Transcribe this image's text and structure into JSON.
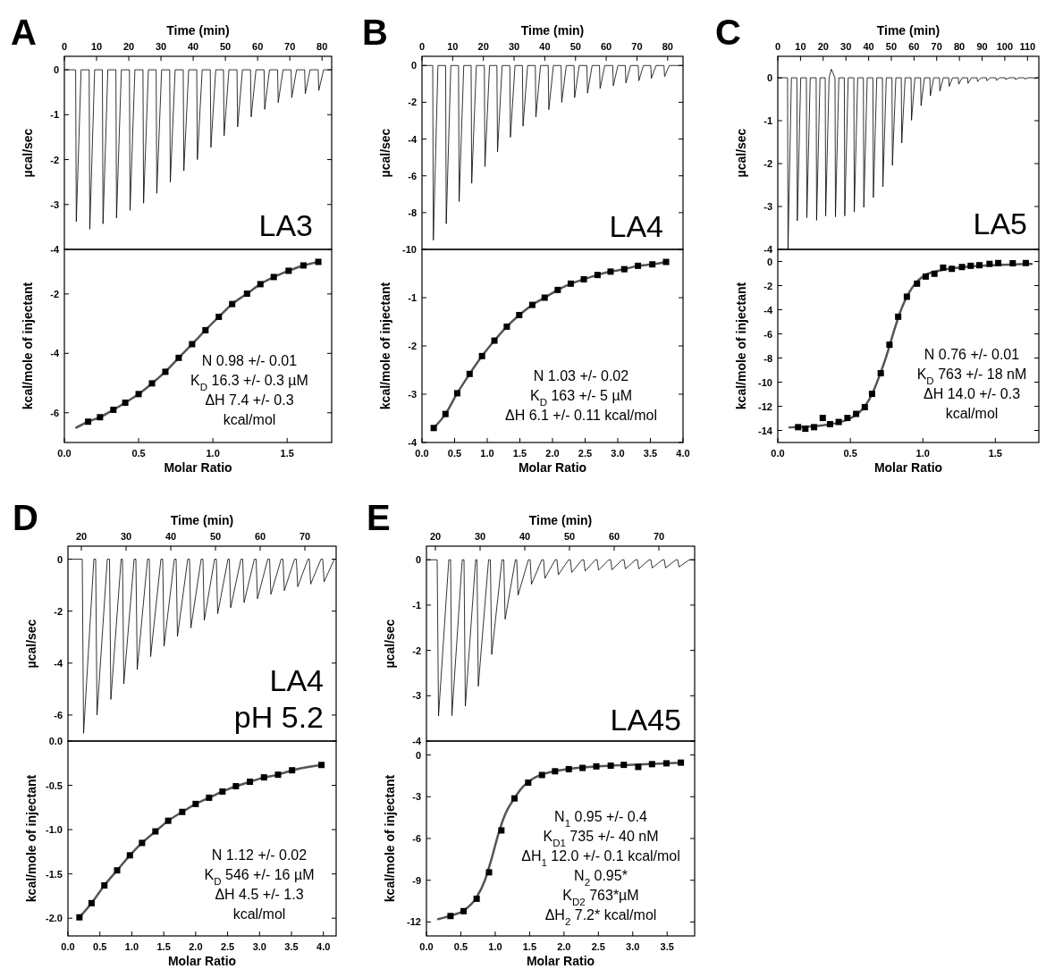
{
  "chart_data": [
    {
      "type": "line",
      "title": "A",
      "xlabel": "Time (min)",
      "ylabel": "µcal/sec",
      "xlim": [
        0,
        83
      ],
      "xticks": [
        0,
        10,
        20,
        30,
        40,
        50,
        60,
        70,
        80
      ],
      "ylim": [
        -4,
        0.3
      ],
      "yticks": [
        0,
        -1,
        -2,
        -3,
        -4
      ],
      "annotations": [
        "LA3"
      ],
      "series": [
        {
          "color": "#000000",
          "x": [
            0,
            3.5,
            3.7,
            5.2,
            7.7,
            7.9,
            9.4,
            11.8,
            12.0,
            13.5,
            16.0,
            16.2,
            17.7,
            20.2,
            20.4,
            21.9,
            24.4,
            24.6,
            26.1,
            28.5,
            28.7,
            30.2,
            32.7,
            32.9,
            34.4,
            36.9,
            37.1,
            38.6,
            41.1,
            41.3,
            42.8,
            45.3,
            45.5,
            47.0,
            49.4,
            49.6,
            51.1,
            53.6,
            53.8,
            55.3,
            57.8,
            58.0,
            59.5,
            62.0,
            62.2,
            63.7,
            66.2,
            66.4,
            67.9,
            70.4,
            70.6,
            72.1,
            74.6,
            74.8,
            76.3,
            78.8,
            79.0,
            80.5,
            83
          ],
          "values": [
            0,
            0,
            -3.38,
            0,
            0,
            -3.55,
            0,
            0,
            -3.43,
            0,
            0,
            -3.3,
            0,
            0,
            -3.13,
            0,
            0,
            -2.97,
            0,
            0,
            -2.75,
            0,
            0,
            -2.5,
            0,
            0,
            -2.25,
            0,
            0,
            -2.0,
            0,
            0,
            -1.73,
            0,
            0,
            -1.47,
            0,
            0,
            -1.27,
            0,
            0,
            -1.05,
            0,
            0,
            -0.88,
            0,
            0,
            -0.73,
            0,
            0,
            -0.62,
            0,
            0,
            -0.53,
            0,
            0,
            -0.46,
            0,
            0
          ]
        }
      ]
    },
    {
      "type": "scatter",
      "xlabel": "Molar Ratio",
      "ylabel": "kcal/mole of injectant",
      "xlim": [
        0,
        1.8
      ],
      "xticks": [
        {
          "value": 0,
          "label": "0.0"
        },
        {
          "value": 0.5,
          "label": "0.5"
        },
        {
          "value": 1,
          "label": "1.0"
        },
        {
          "value": 1.5,
          "label": "1.5"
        }
      ],
      "ylim": [
        -7,
        -0.5
      ],
      "yticks": [
        -2,
        -4,
        -6
      ],
      "marker": "square",
      "annotations": [
        "N 0.98 +/- 0.01",
        "K$_{D}$ 16.3 +/- 0.3 µM",
        "ΔH 7.4 +/- 0.3",
        "kcal/mol"
      ],
      "series": [
        {
          "type": "line",
          "marker": "none",
          "color": "#555555",
          "x": [
            0.08,
            0.16,
            0.24,
            0.33,
            0.41,
            0.5,
            0.59,
            0.68,
            0.77,
            0.86,
            0.95,
            1.04,
            1.13,
            1.23,
            1.32,
            1.41,
            1.51,
            1.61,
            1.71
          ],
          "values": [
            -6.5,
            -6.3,
            -6.15,
            -5.9,
            -5.66,
            -5.37,
            -5.01,
            -4.62,
            -4.15,
            -3.69,
            -3.22,
            -2.77,
            -2.34,
            -1.99,
            -1.67,
            -1.43,
            -1.22,
            -1.04,
            -0.92
          ]
        },
        {
          "type": "scatter",
          "color": "#000000",
          "x": [
            0.16,
            0.24,
            0.33,
            0.41,
            0.5,
            0.59,
            0.68,
            0.77,
            0.86,
            0.95,
            1.04,
            1.13,
            1.23,
            1.32,
            1.41,
            1.51,
            1.61,
            1.71
          ],
          "values": [
            -6.3,
            -6.15,
            -5.9,
            -5.66,
            -5.37,
            -5.01,
            -4.62,
            -4.15,
            -3.69,
            -3.22,
            -2.77,
            -2.34,
            -1.99,
            -1.67,
            -1.43,
            -1.22,
            -1.04,
            -0.92
          ]
        }
      ]
    },
    {
      "type": "line",
      "title": "B",
      "xlabel": "Time (min)",
      "ylabel": "µcal/sec",
      "xlim": [
        0,
        85
      ],
      "xticks": [
        0,
        10,
        20,
        30,
        40,
        50,
        60,
        70,
        80
      ],
      "ylim": [
        -10,
        0.5
      ],
      "yticks": [
        0,
        -2,
        -4,
        -6,
        -8,
        -10
      ],
      "annotations": [
        "LA4"
      ],
      "series": [
        {
          "color": "#000000",
          "x": [
            0,
            3.5,
            3.7,
            5.2,
            7.7,
            7.9,
            9.4,
            11.9,
            12.1,
            13.6,
            16.0,
            16.2,
            17.7,
            20.3,
            20.5,
            22.0,
            24.4,
            24.6,
            26.1,
            28.6,
            28.8,
            30.3,
            32.7,
            32.9,
            34.4,
            36.9,
            37.1,
            38.6,
            41.1,
            41.3,
            42.8,
            45.3,
            45.5,
            47.0,
            49.5,
            49.7,
            51.2,
            53.7,
            53.9,
            55.4,
            57.8,
            58.0,
            59.5,
            62.1,
            62.3,
            63.8,
            66.2,
            66.4,
            67.9,
            70.4,
            70.6,
            72.1,
            74.5,
            74.7,
            76.2,
            78.8,
            79.0,
            80.5,
            85
          ],
          "values": [
            0,
            0,
            -9.5,
            0,
            0,
            -8.6,
            0,
            0,
            -7.4,
            0,
            0,
            -6.4,
            0,
            0,
            -5.5,
            0,
            0,
            -4.7,
            0,
            0,
            -3.9,
            0,
            0,
            -3.3,
            0,
            0,
            -2.8,
            0,
            0,
            -2.4,
            0,
            0,
            -2.0,
            0,
            0,
            -1.75,
            0,
            0,
            -1.5,
            0,
            0,
            -1.25,
            0,
            0,
            -1.1,
            0,
            0,
            -0.95,
            0,
            0,
            -0.83,
            0,
            0,
            -0.7,
            0,
            0,
            -0.6,
            0,
            0
          ]
        }
      ]
    },
    {
      "type": "scatter",
      "xlabel": "Molar Ratio",
      "ylabel": "kcal/mole of injectant",
      "xlim": [
        0,
        4
      ],
      "xticks": [
        {
          "value": 0,
          "label": "0.0"
        },
        {
          "value": 0.5,
          "label": "0.5"
        },
        {
          "value": 1,
          "label": "1.0"
        },
        {
          "value": 1.5,
          "label": "1.5"
        },
        {
          "value": 2,
          "label": "2.0"
        },
        {
          "value": 2.5,
          "label": "2.5"
        },
        {
          "value": 3,
          "label": "3.0"
        },
        {
          "value": 3.5,
          "label": "3.5"
        },
        {
          "value": 4,
          "label": "4.0"
        }
      ],
      "ylim": [
        -4,
        0
      ],
      "yticks": [
        -1,
        -2,
        -3,
        -4
      ],
      "marker": "square",
      "annotations": [
        "N 1.03 +/- 0.02",
        "K$_{D}$ 163 +/- 5 µM",
        "ΔH 6.1 +/- 0.11 kcal/mol"
      ],
      "series": [
        {
          "type": "line",
          "marker": "none",
          "color": "#555555",
          "x": [
            0.18,
            0.36,
            0.54,
            0.73,
            0.92,
            1.11,
            1.3,
            1.49,
            1.69,
            1.88,
            2.08,
            2.28,
            2.48,
            2.69,
            2.89,
            3.1,
            3.31,
            3.53,
            3.74
          ],
          "values": [
            -3.7,
            -3.41,
            -2.98,
            -2.58,
            -2.21,
            -1.89,
            -1.6,
            -1.36,
            -1.15,
            -1.0,
            -0.84,
            -0.71,
            -0.62,
            -0.53,
            -0.46,
            -0.41,
            -0.34,
            -0.31,
            -0.26
          ]
        },
        {
          "type": "scatter",
          "color": "#000000",
          "x": [
            0.18,
            0.36,
            0.54,
            0.73,
            0.92,
            1.11,
            1.3,
            1.49,
            1.69,
            1.88,
            2.08,
            2.28,
            2.48,
            2.69,
            2.89,
            3.1,
            3.31,
            3.53,
            3.74
          ],
          "values": [
            -3.7,
            -3.41,
            -2.98,
            -2.58,
            -2.21,
            -1.89,
            -1.6,
            -1.36,
            -1.15,
            -1.0,
            -0.84,
            -0.71,
            -0.62,
            -0.53,
            -0.46,
            -0.41,
            -0.34,
            -0.31,
            -0.26
          ]
        }
      ]
    },
    {
      "type": "line",
      "title": "C",
      "xlabel": "Time (min)",
      "ylabel": "µcal/sec",
      "xlim": [
        0,
        115
      ],
      "xticks": [
        0,
        10,
        20,
        30,
        40,
        50,
        60,
        70,
        80,
        90,
        100,
        110
      ],
      "ylim": [
        -4,
        0.5
      ],
      "yticks": [
        0,
        -1,
        -2,
        -3,
        -4
      ],
      "annotations": [
        "LA5"
      ],
      "series": [
        {
          "color": "#000000",
          "x": [
            0,
            4.3,
            4.5,
            6.0,
            8.4,
            8.6,
            10.1,
            12.6,
            12.8,
            14.3,
            16.9,
            17.1,
            18.6,
            20.9,
            21.1,
            22.6,
            23.6,
            25.2,
            25.4,
            26.9,
            29.3,
            29.5,
            31.0,
            33.5,
            33.7,
            35.2,
            37.7,
            37.9,
            39.4,
            41.9,
            42.1,
            43.6,
            46.1,
            46.3,
            47.8,
            50.3,
            50.5,
            52.0,
            54.4,
            54.6,
            56.1,
            58.7,
            58.9,
            60.4,
            62.9,
            63.1,
            64.6,
            67.0,
            67.2,
            68.7,
            71.2,
            71.4,
            72.9,
            75.3,
            75.5,
            77.0,
            79.5,
            79.7,
            81.2,
            83.6,
            83.8,
            85.3,
            87.8,
            88.0,
            89.5,
            91.9,
            92.1,
            93.6,
            96.1,
            96.3,
            97.8,
            100.2,
            100.4,
            101.9,
            104.5,
            104.7,
            106.2,
            108.6,
            108.8,
            110.3,
            112.8,
            113.0,
            114.5,
            115
          ],
          "values": [
            0,
            0,
            -4,
            0,
            0,
            -3.33,
            0,
            0,
            -3.26,
            0,
            0,
            -3.32,
            0,
            0,
            -3.22,
            0,
            0.2,
            0,
            -3.24,
            0,
            0,
            -3.22,
            0,
            0,
            -3.13,
            0,
            0,
            -3.02,
            0,
            0,
            -2.79,
            0,
            0,
            -2.54,
            0,
            0,
            -2.04,
            0,
            0,
            -1.52,
            0,
            0,
            -0.99,
            0,
            0,
            -0.65,
            0,
            0,
            -0.42,
            0,
            0,
            -0.31,
            0,
            0,
            -0.2,
            0,
            0,
            -0.15,
            0,
            0,
            -0.13,
            0,
            0,
            -0.09,
            0,
            0,
            -0.07,
            0,
            0,
            -0.06,
            0,
            0,
            -0.04,
            0,
            0,
            -0.04,
            0,
            0,
            -0.03,
            0,
            0,
            -0.02,
            0,
            0
          ]
        }
      ]
    },
    {
      "type": "scatter",
      "xlabel": "Molar Ratio",
      "ylabel": "kcal/mole of injectant",
      "xlim": [
        0,
        1.8
      ],
      "xticks": [
        {
          "value": 0,
          "label": "0.0"
        },
        {
          "value": 0.5,
          "label": "0.5"
        },
        {
          "value": 1,
          "label": "1.0"
        },
        {
          "value": 1.5,
          "label": "1.5"
        }
      ],
      "ylim": [
        -15,
        1
      ],
      "yticks": [
        0,
        -2,
        -4,
        -6,
        -8,
        -10,
        -12,
        -14
      ],
      "marker": "square",
      "annotations": [
        "N 0.76 +/- 0.01",
        "K$_{D}$ 763 +/- 18 nM",
        "ΔH 14.0 +/- 0.3",
        "kcal/mol"
      ],
      "series": [
        {
          "type": "line",
          "marker": "none",
          "color": "#555555",
          "x": [
            0.08,
            0.3,
            0.5,
            0.6,
            0.65,
            0.7,
            0.75,
            0.8,
            0.85,
            0.9,
            0.95,
            1.0,
            1.1,
            1.3,
            1.5,
            1.75
          ],
          "values": [
            -13.75,
            -13.6,
            -13.0,
            -12.0,
            -11.0,
            -9.5,
            -7.8,
            -5.8,
            -4.0,
            -2.7,
            -1.8,
            -1.25,
            -0.8,
            -0.45,
            -0.3,
            -0.2
          ]
        },
        {
          "type": "scatter",
          "color": "#000000",
          "x": [
            0.14,
            0.19,
            0.25,
            0.31,
            0.36,
            0.42,
            0.48,
            0.54,
            0.6,
            0.65,
            0.71,
            0.77,
            0.83,
            0.89,
            0.96,
            1.02,
            1.08,
            1.14,
            1.2,
            1.27,
            1.33,
            1.39,
            1.46,
            1.52,
            1.62,
            1.71
          ],
          "values": [
            -13.73,
            -13.86,
            -13.73,
            -12.97,
            -13.48,
            -13.3,
            -12.97,
            -12.63,
            -12.07,
            -10.97,
            -9.26,
            -6.9,
            -4.58,
            -2.92,
            -1.84,
            -1.25,
            -1.02,
            -0.51,
            -0.61,
            -0.46,
            -0.36,
            -0.31,
            -0.2,
            -0.13,
            -0.15,
            -0.13
          ]
        }
      ]
    },
    {
      "type": "line",
      "title": "D",
      "xlabel": "Time (min)",
      "ylabel": "µcal/sec",
      "xlim": [
        17,
        77
      ],
      "xticks": [
        20,
        30,
        40,
        50,
        60,
        70
      ],
      "ylim": [
        -7,
        0.5
      ],
      "yticks": [
        0,
        -2,
        -4,
        -6
      ],
      "annotations": [
        "LA4",
        "pH 5.2"
      ],
      "series": [
        {
          "color": "#000000",
          "x": [
            17,
            20.2,
            20.5,
            22.8,
            23.2,
            23.5,
            25.8,
            26.3,
            26.6,
            28.9,
            29.2,
            29.5,
            31.8,
            32.2,
            32.5,
            34.8,
            35.2,
            35.5,
            37.8,
            38.2,
            38.5,
            40.8,
            41.2,
            41.5,
            43.8,
            44.2,
            44.5,
            46.8,
            47.2,
            47.5,
            49.8,
            50.2,
            50.5,
            52.8,
            53.1,
            53.4,
            55.7,
            56.1,
            56.4,
            58.7,
            59.1,
            59.4,
            61.7,
            62.1,
            62.4,
            64.7,
            65.1,
            65.4,
            67.7,
            68.1,
            68.4,
            70.7,
            71.0,
            71.3,
            73.6,
            74.0,
            74.3,
            76.6,
            77
          ],
          "values": [
            0,
            0,
            -6.7,
            0,
            0,
            -6.0,
            0,
            0,
            -5.4,
            0,
            0,
            -4.8,
            0,
            0,
            -4.25,
            0,
            0,
            -3.75,
            0,
            0,
            -3.35,
            0,
            0,
            -2.97,
            0,
            0,
            -2.65,
            0,
            0,
            -2.35,
            0,
            0,
            -2.1,
            0,
            0,
            -1.87,
            0,
            0,
            -1.67,
            0,
            0,
            -1.52,
            0,
            0,
            -1.35,
            0,
            0,
            -1.21,
            0,
            0,
            -1.06,
            0,
            0,
            -0.96,
            0,
            0,
            -0.87,
            0,
            0
          ]
        }
      ]
    },
    {
      "type": "scatter",
      "xlabel": "Molar Ratio",
      "ylabel": "kcal/mole of injectant",
      "xlim": [
        0,
        4.2
      ],
      "xticks": [
        {
          "value": 0,
          "label": "0.0"
        },
        {
          "value": 0.5,
          "label": "0.5"
        },
        {
          "value": 1,
          "label": "1.0"
        },
        {
          "value": 1.5,
          "label": "1.5"
        },
        {
          "value": 2,
          "label": "2.0"
        },
        {
          "value": 2.5,
          "label": "2.5"
        },
        {
          "value": 3,
          "label": "3.0"
        },
        {
          "value": 3.5,
          "label": "3.5"
        },
        {
          "value": 4,
          "label": "4.0"
        }
      ],
      "ylim": [
        -2.2,
        0
      ],
      "yticks": [
        {
          "value": 0,
          "label": "0.0"
        },
        {
          "value": -0.5,
          "label": "-0.5"
        },
        {
          "value": -1,
          "label": "-1.0"
        },
        {
          "value": -1.5,
          "label": "-1.5"
        },
        {
          "value": -2,
          "label": "-2.0"
        }
      ],
      "marker": "square",
      "annotations": [
        "N  1.12 +/- 0.02",
        "K$_{D}$ 546 +/- 16 µM",
        "ΔH 4.5 +/- 1.3",
        "kcal/mol"
      ],
      "series": [
        {
          "type": "line",
          "marker": "none",
          "color": "#555555",
          "x": [
            0.18,
            0.37,
            0.57,
            0.77,
            0.97,
            1.16,
            1.37,
            1.57,
            1.79,
            2.0,
            2.21,
            2.42,
            2.63,
            2.85,
            3.07,
            3.29,
            3.51,
            3.97
          ],
          "values": [
            -1.99,
            -1.83,
            -1.63,
            -1.46,
            -1.29,
            -1.15,
            -1.02,
            -0.9,
            -0.8,
            -0.71,
            -0.64,
            -0.57,
            -0.51,
            -0.46,
            -0.41,
            -0.38,
            -0.33,
            -0.27
          ]
        },
        {
          "type": "scatter",
          "color": "#000000",
          "x": [
            0.18,
            0.37,
            0.57,
            0.77,
            0.97,
            1.16,
            1.37,
            1.57,
            1.79,
            2.0,
            2.21,
            2.42,
            2.63,
            2.85,
            3.07,
            3.29,
            3.51,
            3.97
          ],
          "values": [
            -1.99,
            -1.83,
            -1.63,
            -1.46,
            -1.29,
            -1.15,
            -1.02,
            -0.9,
            -0.8,
            -0.71,
            -0.64,
            -0.57,
            -0.51,
            -0.46,
            -0.41,
            -0.38,
            -0.33,
            -0.27
          ]
        }
      ]
    },
    {
      "type": "line",
      "title": "E",
      "xlabel": "Time (min)",
      "ylabel": "µcal/sec",
      "xlim": [
        18,
        78
      ],
      "xticks": [
        20,
        30,
        40,
        50,
        60,
        70
      ],
      "ylim": [
        -4,
        0.3
      ],
      "yticks": [
        0,
        -1,
        -2,
        -3,
        -4
      ],
      "annotations": [
        "LA45"
      ],
      "series": [
        {
          "color": "#000000",
          "x": [
            18,
            20.4,
            20.7,
            23.0,
            23.4,
            23.7,
            26.0,
            26.4,
            26.7,
            29.0,
            29.3,
            29.6,
            31.9,
            32.3,
            32.6,
            34.9,
            35.3,
            35.6,
            37.9,
            38.2,
            38.5,
            40.8,
            41.2,
            41.5,
            43.8,
            44.2,
            44.5,
            46.8,
            47.2,
            47.5,
            49.8,
            50.2,
            50.5,
            52.8,
            53.2,
            53.5,
            55.8,
            56.2,
            56.5,
            58.8,
            59.2,
            59.5,
            61.8,
            62.2,
            62.5,
            64.8,
            65.2,
            65.5,
            67.8,
            68.2,
            68.5,
            70.8,
            71.2,
            71.5,
            73.8,
            74.2,
            74.5,
            76.8,
            78
          ],
          "values": [
            0,
            0,
            -3.45,
            0,
            0,
            -3.44,
            0,
            0,
            -3.23,
            0,
            0,
            -2.79,
            0,
            0,
            -2.09,
            0,
            0,
            -1.31,
            0,
            0,
            -0.78,
            0,
            0,
            -0.54,
            0,
            0,
            -0.41,
            0,
            0,
            -0.33,
            0,
            0,
            -0.28,
            0,
            0,
            -0.25,
            0,
            0,
            -0.23,
            0,
            0,
            -0.22,
            0,
            0,
            -0.2,
            0,
            0,
            -0.2,
            0,
            0,
            -0.18,
            0,
            0,
            -0.18,
            0,
            0,
            -0.16,
            0,
            0
          ]
        }
      ]
    },
    {
      "type": "scatter",
      "xlabel": "Molar Ratio",
      "ylabel": "kcal/mole of injectant",
      "xlim": [
        0,
        3.9
      ],
      "xticks": [
        {
          "value": 0,
          "label": "0.0"
        },
        {
          "value": 0.5,
          "label": "0.5"
        },
        {
          "value": 1,
          "label": "1.0"
        },
        {
          "value": 1.5,
          "label": "1.5"
        },
        {
          "value": 2,
          "label": "2.0"
        },
        {
          "value": 2.5,
          "label": "2.5"
        },
        {
          "value": 3,
          "label": "3.0"
        },
        {
          "value": 3.5,
          "label": "3.5"
        }
      ],
      "ylim": [
        -13,
        1
      ],
      "yticks": [
        0,
        -3,
        -6,
        -9,
        -12
      ],
      "marker": "square",
      "annotations": [
        "N$_{1}$ 0.95 +/- 0.4",
        "K$_{D1}$ 735 +/- 40 nM",
        "ΔH$_{1}$ 12.0 +/- 0.1 kcal/mol",
        "N$_{2}$ 0.95*",
        "K$_{D2}$ 763*µM",
        "ΔH$_{2}$ 7.2* kcal/mol"
      ],
      "series": [
        {
          "type": "line",
          "marker": "none",
          "color": "#555555",
          "x": [
            0.17,
            0.35,
            0.55,
            0.72,
            0.85,
            0.95,
            1.05,
            1.15,
            1.28,
            1.4,
            1.55,
            1.75,
            2.0,
            2.5,
            3.0,
            3.7
          ],
          "values": [
            -11.8,
            -11.55,
            -11.15,
            -10.3,
            -9.0,
            -7.4,
            -5.6,
            -4.2,
            -3.1,
            -2.3,
            -1.7,
            -1.3,
            -1.05,
            -0.82,
            -0.7,
            -0.55
          ]
        },
        {
          "type": "scatter",
          "color": "#000000",
          "x": [
            0.35,
            0.54,
            0.73,
            0.91,
            1.09,
            1.28,
            1.48,
            1.68,
            1.87,
            2.07,
            2.27,
            2.47,
            2.68,
            2.87,
            3.08,
            3.28,
            3.49,
            3.7
          ],
          "values": [
            -11.57,
            -11.22,
            -10.33,
            -8.43,
            -5.42,
            -3.12,
            -1.99,
            -1.44,
            -1.17,
            -1.02,
            -0.93,
            -0.82,
            -0.77,
            -0.71,
            -0.86,
            -0.66,
            -0.6,
            -0.55
          ]
        }
      ]
    }
  ]
}
